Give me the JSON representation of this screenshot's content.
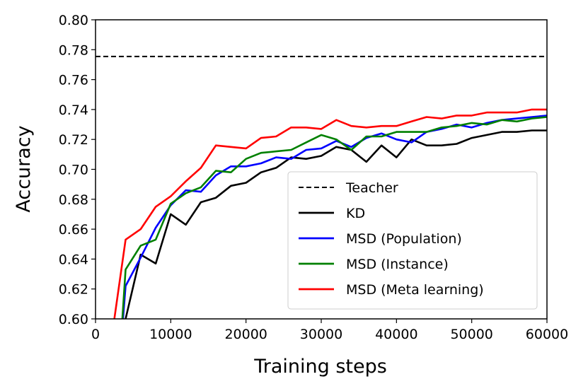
{
  "chart_data": {
    "type": "line",
    "title": "",
    "xlabel": "Training steps",
    "ylabel": "Accuracy",
    "xlim": [
      0,
      60000
    ],
    "ylim": [
      0.6,
      0.8
    ],
    "xticks": [
      "0",
      "10000",
      "20000",
      "30000",
      "40000",
      "50000",
      "60000"
    ],
    "yticks": [
      "0.60",
      "0.62",
      "0.64",
      "0.66",
      "0.68",
      "0.70",
      "0.72",
      "0.74",
      "0.76",
      "0.78",
      "0.80"
    ],
    "grid": false,
    "legend_position": "lower-right",
    "teacher": {
      "name": "Teacher",
      "value": 0.7755,
      "color": "#000000",
      "style": "dashed"
    },
    "series": [
      {
        "name": "KD",
        "color": "#000000",
        "x": [
          3000,
          4000,
          6000,
          8000,
          10000,
          12000,
          14000,
          16000,
          18000,
          20000,
          22000,
          24000,
          26000,
          28000,
          30000,
          32000,
          34000,
          36000,
          38000,
          40000,
          42000,
          44000,
          46000,
          48000,
          50000,
          52000,
          54000,
          56000,
          58000,
          60000
        ],
        "y": [
          0.585,
          0.6,
          0.643,
          0.637,
          0.67,
          0.663,
          0.678,
          0.681,
          0.689,
          0.691,
          0.698,
          0.701,
          0.708,
          0.707,
          0.709,
          0.715,
          0.713,
          0.705,
          0.716,
          0.708,
          0.72,
          0.716,
          0.716,
          0.717,
          0.721,
          0.723,
          0.725,
          0.725,
          0.726,
          0.726
        ]
      },
      {
        "name": "MSD (Population)",
        "color": "#0000ff",
        "x": [
          3500,
          4000,
          6000,
          8000,
          10000,
          12000,
          14000,
          16000,
          18000,
          20000,
          22000,
          24000,
          26000,
          28000,
          30000,
          32000,
          34000,
          36000,
          38000,
          40000,
          42000,
          44000,
          46000,
          48000,
          50000,
          52000,
          54000,
          56000,
          58000,
          60000
        ],
        "y": [
          0.59,
          0.622,
          0.641,
          0.661,
          0.676,
          0.686,
          0.685,
          0.696,
          0.702,
          0.702,
          0.704,
          0.708,
          0.707,
          0.713,
          0.714,
          0.719,
          0.715,
          0.721,
          0.724,
          0.72,
          0.718,
          0.725,
          0.727,
          0.73,
          0.728,
          0.731,
          0.733,
          0.734,
          0.735,
          0.736
        ]
      },
      {
        "name": "MSD (Instance)",
        "color": "#008000",
        "x": [
          3500,
          4000,
          6000,
          8000,
          10000,
          12000,
          14000,
          16000,
          18000,
          20000,
          22000,
          24000,
          26000,
          28000,
          30000,
          32000,
          34000,
          36000,
          38000,
          40000,
          42000,
          44000,
          46000,
          48000,
          50000,
          52000,
          54000,
          56000,
          58000,
          60000
        ],
        "y": [
          0.595,
          0.633,
          0.649,
          0.653,
          0.677,
          0.684,
          0.688,
          0.699,
          0.698,
          0.707,
          0.711,
          0.712,
          0.713,
          0.718,
          0.723,
          0.72,
          0.713,
          0.722,
          0.722,
          0.725,
          0.725,
          0.725,
          0.728,
          0.729,
          0.731,
          0.73,
          0.733,
          0.732,
          0.734,
          0.735
        ]
      },
      {
        "name": "MSD (Meta learning)",
        "color": "#ff0000",
        "x": [
          2500,
          4000,
          6000,
          8000,
          10000,
          12000,
          14000,
          16000,
          18000,
          20000,
          22000,
          24000,
          26000,
          28000,
          30000,
          32000,
          34000,
          36000,
          38000,
          40000,
          42000,
          44000,
          46000,
          48000,
          50000,
          52000,
          54000,
          56000,
          58000,
          60000
        ],
        "y": [
          0.6,
          0.653,
          0.66,
          0.675,
          0.682,
          0.692,
          0.701,
          0.716,
          0.715,
          0.714,
          0.721,
          0.722,
          0.728,
          0.728,
          0.727,
          0.733,
          0.729,
          0.728,
          0.729,
          0.729,
          0.732,
          0.735,
          0.734,
          0.736,
          0.736,
          0.738,
          0.738,
          0.738,
          0.74,
          0.74
        ]
      }
    ]
  }
}
